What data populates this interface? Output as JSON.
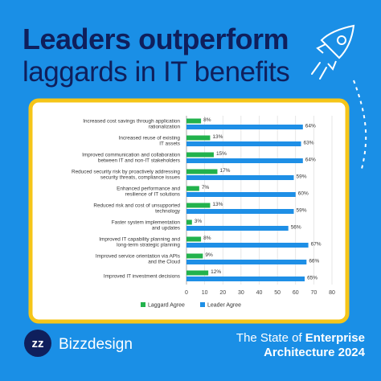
{
  "header": {
    "title_line1": "Leaders outperform",
    "title_line2": "laggards in IT benefits"
  },
  "chart_data": {
    "type": "hbar",
    "categories": [
      "Increased cost savings through application\nrationalization",
      "Increased reuse of existing\nIT assets",
      "Improved communication and collaboration\nbetween IT and non-IT stakeholders",
      "Reduced security risk by proactively addressing\nsecurity threats, compliance issues",
      "Enhanced performance and\nresilience of IT solutions",
      "Reduced risk and cost of unsupported\ntechnology",
      "Faster system implementation\nand updates",
      "Improved IT capability planning and\nlong-term strategic planning",
      "Improved service orientation via APIs\nand the Cloud",
      "Improved IT investment decisions"
    ],
    "series": [
      {
        "name": "Laggard Agree",
        "color": "#22b24c",
        "values": [
          8,
          13,
          15,
          17,
          7,
          13,
          3,
          8,
          9,
          12
        ],
        "value_labels": [
          "8%",
          "13%",
          "15%",
          "17%",
          "7%",
          "13%",
          "3%",
          "8%",
          "9%",
          "12%"
        ]
      },
      {
        "name": "Leader Agree",
        "color": "#1e8fe6",
        "values": [
          64,
          63,
          64,
          59,
          60,
          59,
          56,
          67,
          66,
          65
        ],
        "value_labels": [
          "64%",
          "63%",
          "64%",
          "59%",
          "60%",
          "59%",
          "56%",
          "67%",
          "66%",
          "65%"
        ]
      }
    ],
    "xlim": [
      0,
      80
    ],
    "xticks": [
      0,
      10,
      20,
      30,
      40,
      50,
      60,
      70,
      80
    ],
    "grid": true,
    "legend": "bottom"
  },
  "footer": {
    "brand": "Bizzdesign",
    "report_line1_regular": "The State of",
    "report_line1_bold": "Enterprise",
    "report_line2": "Architecture 2024"
  }
}
